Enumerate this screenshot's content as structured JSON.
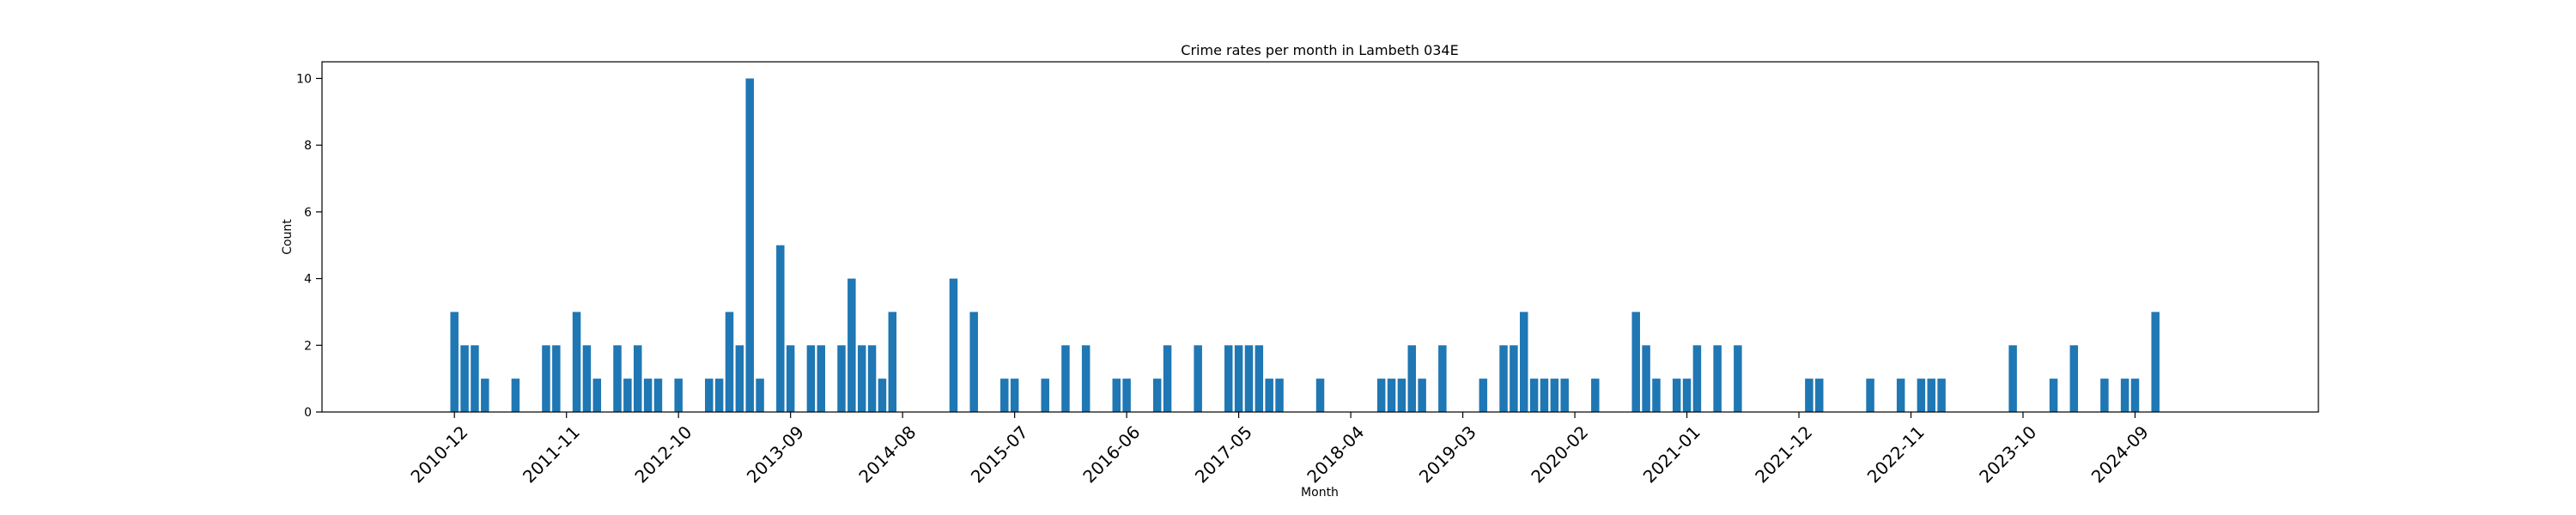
{
  "chart_data": {
    "type": "bar",
    "title": "Crime rates per month in Lambeth 034E",
    "xlabel": "Month",
    "ylabel": "Count",
    "ylim": [
      0,
      10.5
    ],
    "yticks": [
      0,
      2,
      4,
      6,
      8,
      10
    ],
    "x_tick_labels": [
      "2010-12",
      "2011-11",
      "2012-10",
      "2013-09",
      "2014-08",
      "2015-07",
      "2016-06",
      "2017-05",
      "2018-04",
      "2019-03",
      "2020-02",
      "2021-01",
      "2021-12",
      "2022-11",
      "2023-10",
      "2024-09"
    ],
    "xlim": [
      "2009-11",
      "2026-03"
    ],
    "grid": false,
    "bar_color": "#1f77b4",
    "months": [
      "2010-12",
      "2011-01",
      "2011-02",
      "2011-03",
      "2011-06",
      "2011-09",
      "2011-10",
      "2011-12",
      "2012-01",
      "2012-02",
      "2012-04",
      "2012-05",
      "2012-06",
      "2012-07",
      "2012-08",
      "2012-10",
      "2013-01",
      "2013-02",
      "2013-03",
      "2013-04",
      "2013-05",
      "2013-06",
      "2013-08",
      "2013-09",
      "2013-11",
      "2013-12",
      "2014-02",
      "2014-03",
      "2014-04",
      "2014-05",
      "2014-06",
      "2014-07",
      "2015-01",
      "2015-03",
      "2015-06",
      "2015-07",
      "2015-10",
      "2015-12",
      "2016-02",
      "2016-05",
      "2016-06",
      "2016-09",
      "2016-10",
      "2017-01",
      "2017-04",
      "2017-05",
      "2017-06",
      "2017-07",
      "2017-08",
      "2017-09",
      "2018-01",
      "2018-07",
      "2018-08",
      "2018-09",
      "2018-10",
      "2018-11",
      "2019-01",
      "2019-05",
      "2019-07",
      "2019-08",
      "2019-09",
      "2019-10",
      "2019-11",
      "2019-12",
      "2020-01",
      "2020-04",
      "2020-08",
      "2020-09",
      "2020-10",
      "2020-12",
      "2021-01",
      "2021-02",
      "2021-04",
      "2021-06",
      "2022-01",
      "2022-02",
      "2022-07",
      "2022-10",
      "2022-12",
      "2023-01",
      "2023-02",
      "2023-09",
      "2024-01",
      "2024-03",
      "2024-06",
      "2024-08",
      "2024-09",
      "2024-11"
    ],
    "values": [
      3,
      2,
      2,
      1,
      1,
      2,
      2,
      3,
      2,
      1,
      2,
      1,
      2,
      1,
      1,
      1,
      1,
      1,
      3,
      2,
      10,
      1,
      5,
      2,
      2,
      2,
      2,
      4,
      2,
      2,
      1,
      3,
      4,
      3,
      1,
      1,
      1,
      2,
      2,
      1,
      1,
      1,
      2,
      2,
      2,
      2,
      2,
      2,
      1,
      1,
      1,
      1,
      1,
      1,
      2,
      1,
      2,
      1,
      2,
      2,
      3,
      1,
      1,
      1,
      1,
      1,
      3,
      2,
      1,
      1,
      1,
      2,
      2,
      2,
      1,
      1,
      1,
      1,
      1,
      1,
      1,
      2,
      1,
      2,
      1,
      1,
      1,
      3
    ]
  }
}
